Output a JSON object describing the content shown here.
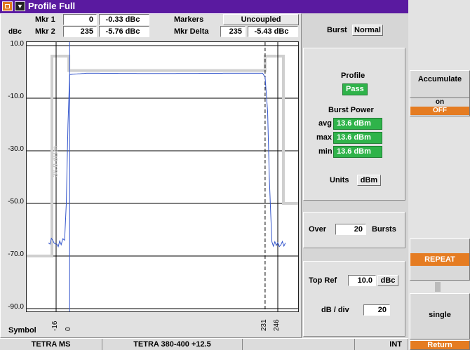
{
  "window": {
    "title": "Profile Full"
  },
  "markers": {
    "mkr1_label": "Mkr 1",
    "mkr1_pos": "0",
    "mkr1_val": "-0.33 dBc",
    "mkr2_label": "Mkr 2",
    "mkr2_pos": "235",
    "mkr2_val": "-5.76 dBc",
    "markers_label": "Markers",
    "markers_mode": "Uncoupled",
    "delta_label": "Mkr Delta",
    "delta_pos": "235",
    "delta_val": "-5.43 dBc"
  },
  "burst": {
    "label": "Burst",
    "value": "Normal"
  },
  "plot": {
    "yunit": "dBc",
    "yticks": [
      "10.0",
      "-10.0",
      "-30.0",
      "-50.0",
      "-70.0",
      "-90.0"
    ],
    "xaxis_label": "Symbol",
    "xticks": [
      "-16",
      "0",
      "231",
      "246"
    ],
    "mask_label": "36.0 dBm"
  },
  "chart_data": {
    "type": "line",
    "ylabel": "dBc",
    "xlabel": "Symbol",
    "ylim": [
      -90,
      10
    ],
    "y_ticks": [
      10,
      -10,
      -30,
      -50,
      -70,
      -90
    ],
    "x_ticks": [
      -16,
      0,
      231,
      246
    ],
    "series": [
      {
        "points": [
          [
            -25,
            -65
          ],
          [
            -20,
            -64
          ],
          [
            -17,
            -66
          ],
          [
            -10,
            -65
          ],
          [
            -6,
            -64
          ],
          [
            -4,
            -50
          ],
          [
            -2,
            -20
          ],
          [
            0,
            -1
          ],
          [
            20,
            -0.5
          ],
          [
            100,
            -0.6
          ],
          [
            200,
            -0.5
          ],
          [
            228,
            -0.5
          ],
          [
            231,
            -2
          ],
          [
            234,
            -15
          ],
          [
            236,
            -40
          ],
          [
            239,
            -65
          ],
          [
            246,
            -66
          ],
          [
            255,
            -65
          ]
        ]
      }
    ],
    "color": "#3355cc"
  },
  "results": {
    "profile_label": "Profile",
    "profile_status": "Pass",
    "burst_power_label": "Burst Power",
    "avg_label": "avg",
    "avg_val": "13.6 dBm",
    "max_label": "max",
    "max_val": "13.6 dBm",
    "min_label": "min",
    "min_val": "13.6 dBm",
    "units_label": "Units",
    "units_val": "dBm"
  },
  "over": {
    "label": "Over",
    "value": "20",
    "suffix": "Bursts"
  },
  "ref": {
    "top_label": "Top Ref",
    "top_val": "10.0",
    "top_unit": "dBc",
    "div_label": "dB / div",
    "div_val": "20"
  },
  "softkeys": {
    "accumulate": "Accumulate",
    "on": "on",
    "off": "OFF",
    "repeat": "REPEAT",
    "single": "single",
    "return": "Return"
  },
  "status": {
    "standard": "TETRA MS",
    "band": "TETRA 380-400 +12.5",
    "ref": "INT"
  }
}
